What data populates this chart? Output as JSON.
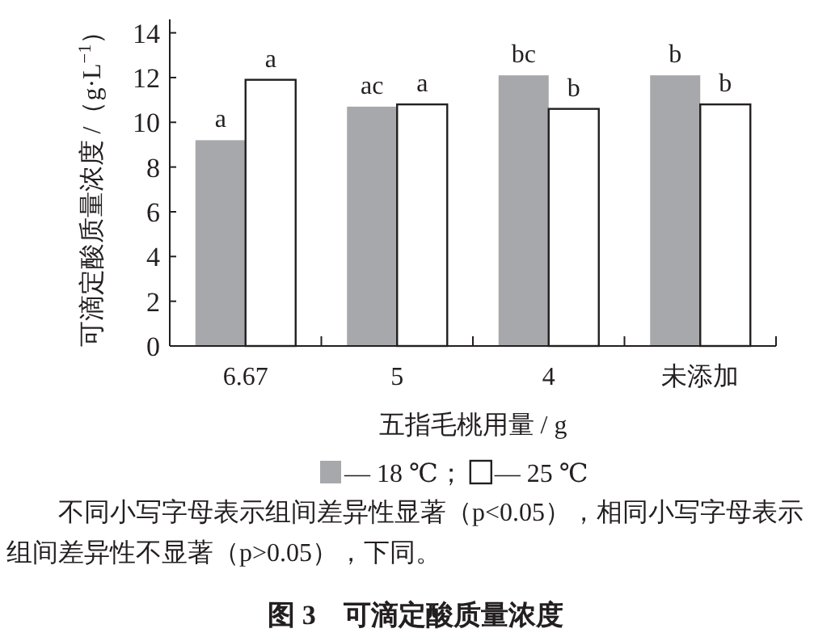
{
  "chart_data": {
    "type": "bar",
    "title": "图 3　可滴定酸质量浓度",
    "xlabel": "五指毛桃用量 / g",
    "ylabel": "可滴定酸质量浓度 /（g·L$^{−1}$）",
    "categories": [
      "6.67",
      "5",
      "4",
      "未添加"
    ],
    "series": [
      {
        "name": "— 18 ℃；",
        "color": "#a7a8ab",
        "values": [
          9.2,
          10.7,
          12.1,
          12.1
        ]
      },
      {
        "name": "— 25 ℃",
        "color": "#ffffff",
        "values": [
          11.9,
          10.8,
          10.6,
          10.8
        ]
      }
    ],
    "ylim": [
      0,
      14.6
    ],
    "yticks": [
      0,
      2,
      4,
      6,
      8,
      10,
      12,
      14
    ],
    "grid": false,
    "legend": "bottom",
    "annotations": [
      {
        "text": "a",
        "x": "6.67",
        "y": 9.2
      },
      {
        "text": "a",
        "x": "6.67",
        "y": 11.9
      },
      {
        "text": "ac",
        "x": "5",
        "y": 10.7
      },
      {
        "text": "a",
        "x": "5",
        "y": 10.8
      },
      {
        "text": "bc",
        "x": "4",
        "y": 12.1
      },
      {
        "text": "b",
        "x": "4",
        "y": 10.6
      },
      {
        "text": "b",
        "x": "未添加",
        "y": 12.1
      },
      {
        "text": "b",
        "x": "未添加",
        "y": 10.8
      },
      "不同小写字母表示组间差异性显著（p<0.05），相同小写字母表示组间差异性不显著（p>0.05），下同。"
    ]
  }
}
